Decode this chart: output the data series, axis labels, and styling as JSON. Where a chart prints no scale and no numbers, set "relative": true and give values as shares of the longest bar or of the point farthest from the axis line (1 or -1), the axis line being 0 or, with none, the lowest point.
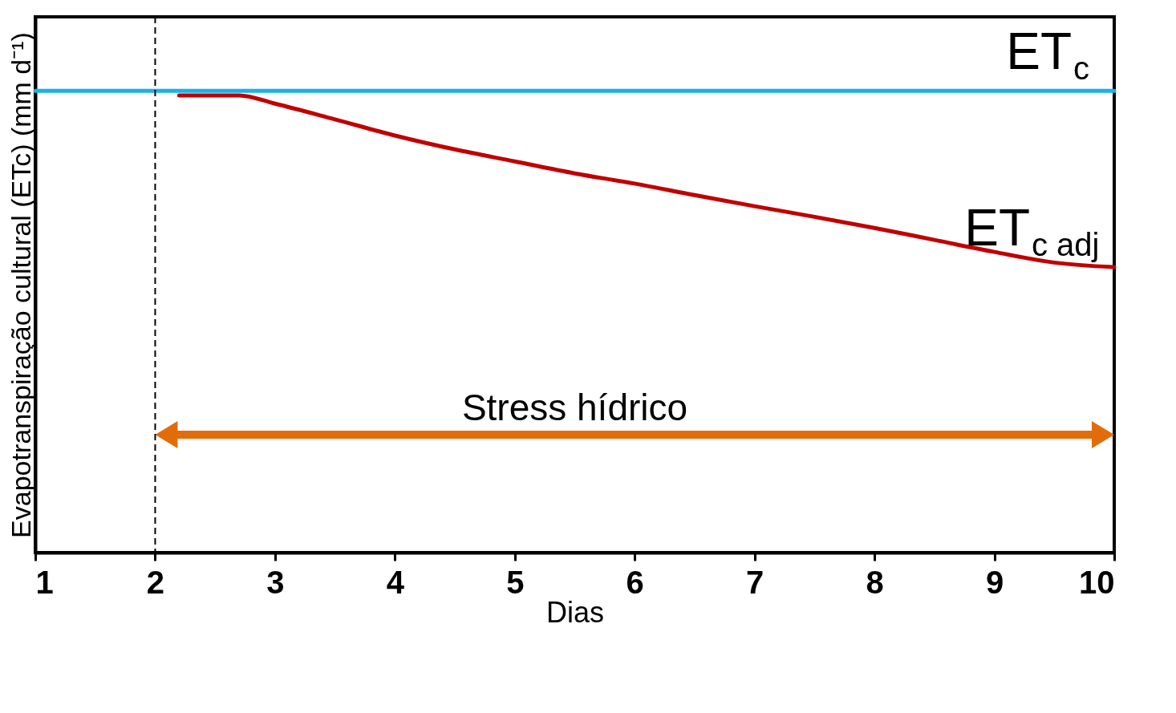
{
  "chart_data": {
    "type": "line",
    "relative": true,
    "xlabel": "Dias",
    "ylabel": "Evapotranspiração cultural (ETc) (mm d⁻¹)",
    "xlim": [
      1,
      10
    ],
    "xticks": [
      1,
      2,
      3,
      4,
      5,
      6,
      7,
      8,
      9,
      10
    ],
    "tick_labels": "x",
    "legend": false,
    "marker": "none",
    "line_style": "solid",
    "series": [
      {
        "name": "ET$_{c}$",
        "color": "#1ab2e8",
        "x": [
          1,
          10
        ],
        "values": [
          1,
          1
        ]
      },
      {
        "name": "ET$_{c adj}$",
        "color": "#c00000",
        "x": [
          2.2,
          2.7,
          3,
          3.5,
          4,
          4.5,
          5,
          5.5,
          6,
          6.5,
          7,
          7.5,
          8,
          8.5,
          9,
          9.5,
          10
        ],
        "values": [
          0.99,
          0.99,
          0.972,
          0.938,
          0.903,
          0.873,
          0.847,
          0.821,
          0.799,
          0.774,
          0.75,
          0.727,
          0.703,
          0.677,
          0.651,
          0.628,
          0.618
        ]
      }
    ],
    "ref_lines": [
      {
        "axis": "x",
        "value": 2,
        "line_style": "dashed",
        "color": "#000000"
      }
    ],
    "annotations": [
      "Stress hídrico"
    ]
  }
}
